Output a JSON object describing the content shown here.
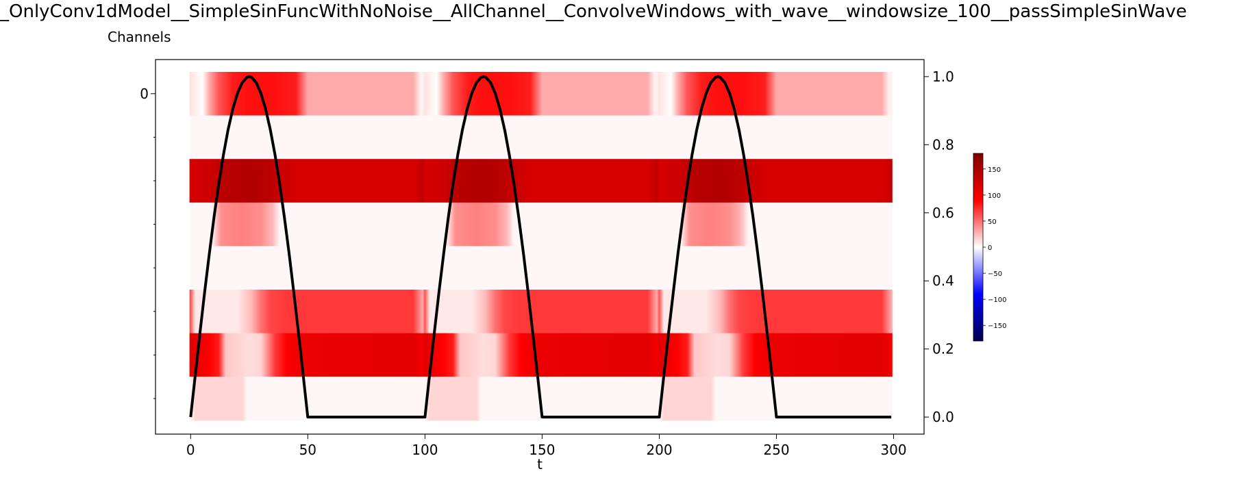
{
  "title": "_OnlyConv1dModel__SimpleSinFuncWithNoNoise__AllChannel__ConvolveWindows_with_wave__windowsize_100__passSimpleSinWave",
  "y_axis_title": "Channels",
  "chart_data": [
    {
      "type": "heatmap",
      "xlabel": "t",
      "x_ticks": [
        0,
        50,
        100,
        150,
        200,
        250,
        300
      ],
      "x_range": [
        -15,
        313
      ],
      "y_ticks_labeled": [
        {
          "value": 0,
          "label": "0"
        }
      ],
      "y_minor_ticks": [
        1,
        2,
        3,
        4,
        5,
        6,
        7
      ],
      "n_channels": 8,
      "n_t": 300,
      "colormap": "seismic",
      "value_range": [
        -180,
        180
      ],
      "channels": [
        {
          "channel": 0,
          "period": 100,
          "knots": [
            [
              0,
              10
            ],
            [
              5,
              0
            ],
            [
              8,
              30
            ],
            [
              12,
              60
            ],
            [
              18,
              80
            ],
            [
              25,
              85
            ],
            [
              35,
              85
            ],
            [
              45,
              80
            ],
            [
              50,
              30
            ],
            [
              55,
              30
            ],
            [
              95,
              30
            ],
            [
              98,
              5
            ],
            [
              102,
              5
            ],
            [
              105,
              100
            ],
            [
              110,
              150
            ],
            [
              115,
              155
            ],
            [
              125,
              160
            ],
            [
              135,
              150
            ],
            [
              143,
              120
            ],
            [
              147,
              30
            ],
            [
              149,
              30
            ]
          ]
        },
        {
          "channel": 1,
          "period": 100,
          "knots": [
            [
              0,
              3
            ],
            [
              99,
              3
            ]
          ]
        },
        {
          "channel": 2,
          "period": 100,
          "knots": [
            [
              0,
              120
            ],
            [
              8,
              125
            ],
            [
              15,
              140
            ],
            [
              25,
              145
            ],
            [
              33,
              140
            ],
            [
              38,
              130
            ],
            [
              45,
              120
            ],
            [
              96,
              120
            ],
            [
              100,
              140
            ],
            [
              106,
              160
            ],
            [
              112,
              170
            ],
            [
              120,
              180
            ],
            [
              128,
              170
            ],
            [
              135,
              150
            ],
            [
              142,
              125
            ],
            [
              148,
              120
            ],
            [
              149,
              120
            ]
          ]
        },
        {
          "channel": 3,
          "period": 100,
          "knots": [
            [
              0,
              3
            ],
            [
              9,
              3
            ],
            [
              13,
              40
            ],
            [
              22,
              45
            ],
            [
              30,
              40
            ],
            [
              35,
              25
            ],
            [
              38,
              3
            ],
            [
              99,
              3
            ]
          ]
        },
        {
          "channel": 4,
          "period": 100,
          "knots": [
            [
              0,
              3
            ],
            [
              99,
              3
            ]
          ]
        },
        {
          "channel": 5,
          "period": 100,
          "knots": [
            [
              0,
              60
            ],
            [
              2,
              8
            ],
            [
              20,
              8
            ],
            [
              26,
              25
            ],
            [
              30,
              50
            ],
            [
              34,
              65
            ],
            [
              40,
              70
            ],
            [
              95,
              70
            ],
            [
              99,
              30
            ],
            [
              99.9,
              8
            ]
          ]
        },
        {
          "channel": 6,
          "period": 100,
          "knots": [
            [
              0,
              110
            ],
            [
              12,
              80
            ],
            [
              15,
              20
            ],
            [
              25,
              12
            ],
            [
              30,
              15
            ],
            [
              36,
              70
            ],
            [
              42,
              95
            ],
            [
              50,
              105
            ],
            [
              95,
              110
            ],
            [
              99,
              100
            ],
            [
              100,
              95
            ],
            [
              108,
              60
            ],
            [
              110,
              8
            ],
            [
              132,
              8
            ],
            [
              136,
              50
            ],
            [
              140,
              80
            ],
            [
              149,
              110
            ]
          ]
        },
        {
          "channel": 7,
          "period": 100,
          "knots": [
            [
              0,
              3
            ],
            [
              2,
              15
            ],
            [
              22,
              15
            ],
            [
              24,
              3
            ],
            [
              99,
              3
            ]
          ]
        }
      ]
    },
    {
      "type": "line",
      "x": [
        0,
        2,
        4,
        6,
        8,
        10,
        12,
        14,
        16,
        18,
        20,
        22,
        24,
        25,
        26,
        28,
        30,
        32,
        34,
        36,
        38,
        40,
        42,
        44,
        46,
        48,
        50,
        100
      ],
      "y": [
        0,
        0.1253,
        0.2487,
        0.3681,
        0.4818,
        0.5878,
        0.6845,
        0.7705,
        0.8443,
        0.9048,
        0.9511,
        0.9823,
        0.998,
        1,
        0.998,
        0.9823,
        0.9511,
        0.9048,
        0.8443,
        0.7705,
        0.6845,
        0.5878,
        0.4818,
        0.3681,
        0.2487,
        0.1253,
        0,
        0
      ],
      "period": 100,
      "x_max": 299,
      "color": "#000000",
      "y2_ticks": [
        0.0,
        0.2,
        0.4,
        0.6,
        0.8,
        1.0
      ],
      "y2_tick_labels": [
        "0.0",
        "0.2",
        "0.4",
        "0.6",
        "0.8",
        "1.0"
      ],
      "y2_range": [
        -0.05,
        1.05
      ]
    },
    {
      "type": "colorbar",
      "range": [
        -180,
        180
      ],
      "ticks": [
        150,
        100,
        50,
        0,
        -50,
        -100,
        -150
      ],
      "tick_labels": [
        "150",
        "100",
        "50",
        "0",
        "−50",
        "−100",
        "−150"
      ]
    }
  ]
}
